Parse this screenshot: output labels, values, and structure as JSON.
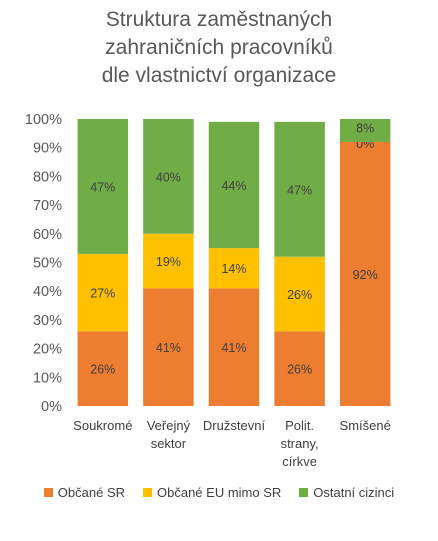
{
  "chart_data": {
    "type": "bar",
    "stacked": true,
    "title_lines": [
      "Struktura zaměstnaných",
      "zahraničních pracovníků",
      "dle vlastnictví organizace"
    ],
    "categories": [
      [
        "Soukromé"
      ],
      [
        "Veřejný",
        "sektor"
      ],
      [
        "Družstevní"
      ],
      [
        "Polit.",
        "strany,",
        "církve"
      ],
      [
        "Smíšené"
      ]
    ],
    "series": [
      {
        "name": "Občané SR",
        "color": "#ED7D31",
        "values": [
          26,
          41,
          41,
          26,
          92
        ],
        "labels": [
          "26%",
          "41%",
          "41%",
          "26%",
          "92%"
        ]
      },
      {
        "name": "Občané EU mimo SR",
        "color": "#FFC000",
        "values": [
          27,
          19,
          14,
          26,
          0
        ],
        "labels": [
          "27%",
          "19%",
          "14%",
          "26%",
          "0%"
        ]
      },
      {
        "name": "Ostatní cizinci",
        "color": "#70AD47",
        "values": [
          47,
          40,
          44,
          47,
          8
        ],
        "labels": [
          "47%",
          "40%",
          "44%",
          "47%",
          "8%"
        ]
      }
    ],
    "y_ticks": [
      "0%",
      "10%",
      "20%",
      "30%",
      "40%",
      "50%",
      "60%",
      "70%",
      "80%",
      "90%",
      "100%"
    ],
    "ylim": [
      0,
      100
    ],
    "grid": false,
    "legend_position": "bottom"
  }
}
